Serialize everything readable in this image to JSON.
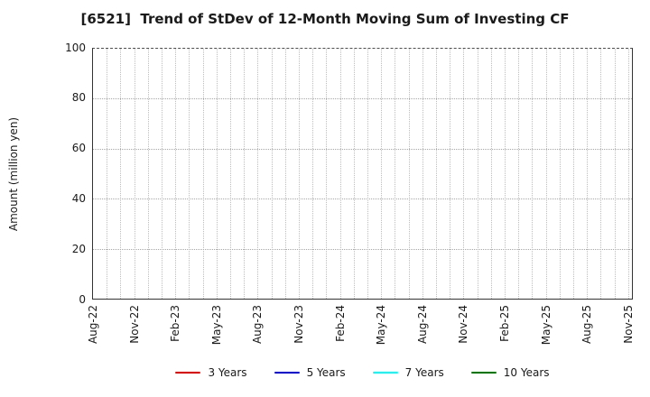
{
  "chart_data": {
    "type": "line",
    "title": "[6521]  Trend of StDev of 12-Month Moving Sum of Investing CF",
    "xlabel": "",
    "ylabel": "Amount (million yen)",
    "ylim": [
      0,
      100
    ],
    "yticks": [
      0,
      20,
      40,
      60,
      80,
      100
    ],
    "x_tick_labels": [
      "Aug-22",
      "Nov-22",
      "Feb-23",
      "May-23",
      "Aug-23",
      "Nov-23",
      "Feb-24",
      "May-24",
      "Aug-24",
      "Nov-24",
      "Feb-25",
      "May-25",
      "Aug-25",
      "Nov-25"
    ],
    "x_months_between_ticks": 3,
    "x_total_months": 40,
    "grid": "dotted",
    "grid_on": true,
    "legend_position": "bottom-center",
    "series": [
      {
        "name": "3 Years",
        "color": "#ff0000",
        "values": []
      },
      {
        "name": "5 Years",
        "color": "#0000ff",
        "values": []
      },
      {
        "name": "7 Years",
        "color": "#00ffff",
        "values": []
      },
      {
        "name": "10 Years",
        "color": "#008000",
        "values": []
      }
    ]
  }
}
